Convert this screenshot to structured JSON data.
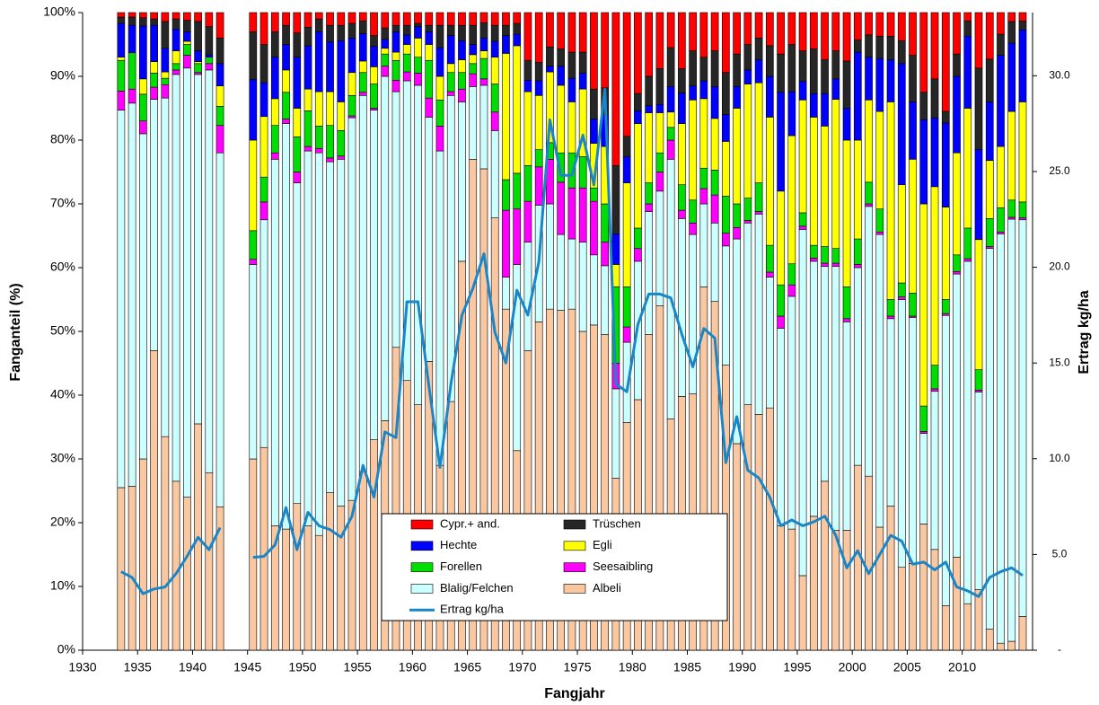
{
  "chart_data": {
    "type": "stacked-bar",
    "x_label": "Fangjahr",
    "y_label": "Fanganteil  (%)",
    "y2_label": "Ertrag kg/ha",
    "xlim": [
      1930,
      2016.4
    ],
    "xticks": [
      1930,
      1935,
      1940,
      1945,
      1950,
      1955,
      1960,
      1965,
      1970,
      1975,
      1980,
      1985,
      1990,
      1995,
      2000,
      2005,
      2010
    ],
    "ylim": [
      0,
      100
    ],
    "yticks": [
      {
        "value": 0,
        "label": "0%"
      },
      {
        "value": 10,
        "label": "10%"
      },
      {
        "value": 20,
        "label": "20%"
      },
      {
        "value": 30,
        "label": "30%"
      },
      {
        "value": 40,
        "label": "40%"
      },
      {
        "value": 50,
        "label": "50%"
      },
      {
        "value": 60,
        "label": "60%"
      },
      {
        "value": 70,
        "label": "70%"
      },
      {
        "value": 80,
        "label": "80%"
      },
      {
        "value": 90,
        "label": "90%"
      },
      {
        "value": 100,
        "label": "100%"
      }
    ],
    "y2lim": [
      0,
      33.3
    ],
    "y2ticks": [
      {
        "value": 0,
        "label": "-"
      },
      {
        "value": 5,
        "label": "5.0"
      },
      {
        "value": 10,
        "label": "10.0"
      },
      {
        "value": 15,
        "label": "15.0"
      },
      {
        "value": 20,
        "label": "20.0"
      },
      {
        "value": 25,
        "label": "25.0"
      },
      {
        "value": 30,
        "label": "30.0"
      }
    ],
    "grid": false,
    "legend": "bottom-center",
    "x": [
      1933,
      1934,
      1935,
      1936,
      1937,
      1938,
      1939,
      1940,
      1941,
      1942,
      1943,
      1944,
      1945,
      1946,
      1947,
      1948,
      1949,
      1950,
      1951,
      1952,
      1953,
      1954,
      1955,
      1956,
      1957,
      1958,
      1959,
      1960,
      1961,
      1962,
      1963,
      1964,
      1965,
      1966,
      1967,
      1968,
      1969,
      1970,
      1971,
      1972,
      1973,
      1974,
      1975,
      1976,
      1977,
      1978,
      1979,
      1980,
      1981,
      1982,
      1983,
      1984,
      1985,
      1986,
      1987,
      1988,
      1989,
      1990,
      1991,
      1992,
      1993,
      1994,
      1995,
      1996,
      1997,
      1998,
      1999,
      2000,
      2001,
      2002,
      2003,
      2004,
      2005,
      2006,
      2007,
      2008,
      2009,
      2010,
      2011,
      2012,
      2013,
      2014,
      2015
    ],
    "series": [
      {
        "name": "Cypr.+ and.",
        "color": "#ff0000",
        "values": [
          0.7,
          0.7,
          0.8,
          1,
          1.4,
          1,
          1.2,
          1.4,
          2.2,
          4,
          null,
          null,
          3,
          5,
          3,
          2,
          3.2,
          2.3,
          1,
          2,
          2,
          1.7,
          1.3,
          3.6,
          2.4,
          2,
          2,
          1.7,
          2,
          2,
          2,
          2,
          2,
          1.6,
          2,
          2,
          1.7,
          7.5,
          7.8,
          5.4,
          5.7,
          6.2,
          6.2,
          12,
          11.8,
          24,
          19.4,
          12.7,
          10,
          8.8,
          5.5,
          8.8,
          6,
          7,
          6,
          9.4,
          6.5,
          5,
          4,
          5.2,
          6.5,
          5,
          6,
          5.7,
          7.4,
          6,
          7.6,
          4.3,
          3.5,
          3.7,
          3.7,
          4.4,
          6.7,
          12.5,
          10.4,
          15.5,
          6.5,
          1.3,
          8.7,
          7.3,
          3.4,
          1.4,
          1.3
        ]
      },
      {
        "name": "Trüschen",
        "color": "#262626",
        "values": [
          1,
          1.3,
          1.3,
          1,
          4.2,
          1.6,
          1.8,
          4.6,
          4.4,
          4,
          null,
          null,
          7.5,
          6,
          4,
          3,
          3.8,
          2.9,
          2,
          2.6,
          2.4,
          2.3,
          2,
          1.7,
          1.8,
          1,
          1.5,
          0.5,
          1,
          3.5,
          1.6,
          2.4,
          3,
          2.4,
          2.5,
          1.6,
          1.7,
          3.1,
          2.9,
          3,
          2.7,
          4.1,
          3.3,
          4.7,
          4.2,
          10.7,
          3.2,
          2.7,
          4.6,
          5.6,
          6.1,
          3.8,
          5.5,
          3.7,
          5.6,
          6.6,
          5.1,
          4,
          3.4,
          4.8,
          6,
          7.4,
          4.8,
          7,
          5.3,
          4.4,
          7.4,
          1.9,
          3.5,
          3.5,
          3.7,
          3.6,
          7.3,
          4.3,
          6.1,
          1.8,
          3.5,
          2.4,
          12.8,
          6.7,
          3.3,
          3.4,
          1.4
        ]
      },
      {
        "name": "Hechte",
        "color": "#0000ff",
        "values": [
          5.3,
          4.3,
          8.3,
          5.7,
          3.7,
          3.4,
          1.5,
          1.7,
          0.4,
          3.5,
          null,
          null,
          9.5,
          5.3,
          6.5,
          4,
          8,
          6.8,
          9.4,
          7.8,
          9.6,
          5.4,
          4.3,
          3.2,
          1.4,
          3.2,
          1.5,
          1.8,
          2,
          4.5,
          4.4,
          3,
          1.6,
          2,
          2.5,
          2.8,
          1.8,
          1.8,
          2.3,
          0.9,
          3,
          3.7,
          2.5,
          3.8,
          5,
          4.8,
          4.1,
          2,
          1.1,
          1.3,
          4,
          4.8,
          2.2,
          2.8,
          5,
          4.2,
          3.4,
          2.2,
          3.6,
          6.4,
          15.5,
          6.9,
          2.9,
          3.7,
          5.1,
          3.2,
          5,
          13.8,
          6.7,
          8.3,
          6.6,
          19,
          9,
          13.2,
          10.8,
          13.2,
          12,
          11.3,
          14.1,
          9.2,
          14.3,
          10.7,
          11.3
        ]
      },
      {
        "name": "Egli",
        "color": "#ffff00",
        "values": [
          0.5,
          0,
          2.4,
          1.8,
          1,
          2,
          0.5,
          0.3,
          0,
          3.2,
          null,
          null,
          14.2,
          9.5,
          4.2,
          3.5,
          4.5,
          3.4,
          5.4,
          5.3,
          4.5,
          3.6,
          1.8,
          2.7,
          0.9,
          1.3,
          1.5,
          3,
          2.5,
          3.7,
          1.4,
          2,
          1.4,
          1.2,
          4.2,
          19.8,
          20,
          11.6,
          8.5,
          11.1,
          10.6,
          8,
          10.6,
          7,
          9,
          3.5,
          16.3,
          16.4,
          11,
          6.3,
          2.4,
          9.6,
          15.7,
          10.9,
          8.1,
          8.6,
          15,
          17.9,
          15.7,
          20.1,
          14.7,
          20.1,
          17.7,
          20.1,
          18.9,
          23.4,
          23,
          15.5,
          12.9,
          15.3,
          31,
          15.4,
          21,
          31.7,
          28,
          14.5,
          16,
          18.8,
          20.4,
          9.1,
          9.6,
          13.9,
          15.7
        ]
      },
      {
        "name": "Forellen",
        "color": "#00dd00",
        "values": [
          4.8,
          5.7,
          4.2,
          2.2,
          1,
          1,
          1.7,
          1.4,
          1,
          3,
          null,
          null,
          4.5,
          3.9,
          4.3,
          4.2,
          5.5,
          5.6,
          3.5,
          5.1,
          4,
          3.2,
          3.1,
          3.8,
          1.9,
          3.1,
          2.8,
          2.5,
          5.9,
          4.1,
          3,
          2.6,
          1.6,
          3.2,
          4.4,
          4.8,
          5.6,
          5.6,
          2.7,
          2.6,
          4.6,
          5.5,
          4.9,
          2.1,
          6,
          12,
          6.3,
          3.2,
          3.3,
          3,
          2,
          4,
          3.6,
          3.2,
          3.9,
          5.8,
          3.7,
          3.5,
          4.5,
          4.2,
          4.9,
          3.3,
          2.1,
          2,
          2.6,
          2.3,
          5,
          4,
          3.4,
          3.6,
          2.6,
          2.2,
          3.6,
          4,
          3.7,
          2.2,
          2.6,
          4.8,
          3.2,
          4.4,
          3.8,
          2.7,
          2.5
        ]
      },
      {
        "name": "Seesaibling",
        "color": "#ff00ff",
        "values": [
          3,
          2.2,
          2,
          1.9,
          2.1,
          0.7,
          2,
          0.3,
          1,
          4.3,
          null,
          null,
          0.8,
          2.8,
          1,
          0.7,
          1.7,
          0.7,
          0.7,
          0.6,
          0.5,
          0.3,
          0.5,
          0.3,
          1.6,
          1.8,
          1.4,
          1.9,
          3,
          3.9,
          0.6,
          2,
          2,
          1,
          2.9,
          10.5,
          8.7,
          6.4,
          6,
          7,
          8.2,
          8,
          8.5,
          8.4,
          3.7,
          4,
          2.4,
          2,
          1.2,
          3,
          3,
          1.3,
          1.8,
          2.4,
          4.4,
          2,
          1.8,
          0.4,
          0.4,
          0.8,
          1.9,
          1.8,
          0.5,
          0.5,
          0.5,
          0.5,
          0.5,
          0.5,
          0.4,
          0.4,
          0.4,
          0.4,
          0.2,
          0.3,
          0.4,
          0.3,
          0.4,
          0.4,
          0.3,
          0.3,
          0.3,
          0.3,
          0.3
        ]
      },
      {
        "name": "Blalig/Felchen",
        "color": "#ccffff",
        "values": [
          59.2,
          60.1,
          51,
          39.4,
          53.1,
          63.8,
          67.3,
          54.8,
          63.2,
          55.5,
          null,
          null,
          30.5,
          35.7,
          57.5,
          63.6,
          50.3,
          58.8,
          60,
          51.9,
          54.4,
          60,
          59,
          51.7,
          54,
          40.1,
          47,
          50.1,
          38.3,
          49.3,
          48,
          25,
          11.4,
          13.1,
          13.7,
          5,
          29.2,
          17,
          18.3,
          16.5,
          11.9,
          11,
          14,
          11,
          10.8,
          14,
          12.6,
          21.7,
          19.3,
          18,
          40.7,
          27.9,
          25,
          13,
          12.3,
          18.7,
          32.1,
          28.5,
          31.4,
          20.5,
          31,
          36.5,
          54.3,
          40,
          33.7,
          41.4,
          32.7,
          31,
          42.3,
          45.9,
          29.4,
          42,
          38.6,
          14.2,
          24.8,
          45.5,
          44.4,
          53.7,
          31,
          59.7,
          64.2,
          66.2,
          62.2
        ]
      },
      {
        "name": "Albeli",
        "color": "#fac8a0",
        "values": [
          25.5,
          25.7,
          30,
          47,
          33.5,
          26.5,
          24,
          35.5,
          27.8,
          22.5,
          null,
          null,
          30,
          31.8,
          19.5,
          19,
          23,
          19.5,
          18,
          24.7,
          22.6,
          23.5,
          28,
          33,
          36,
          47.5,
          42.3,
          38.5,
          45.3,
          29,
          39,
          61,
          77,
          75.5,
          67.8,
          53.5,
          31.3,
          47,
          51.5,
          53.5,
          53.3,
          53.5,
          50,
          51,
          49.5,
          27,
          35.7,
          39.3,
          49.5,
          54,
          36.3,
          39.8,
          40.2,
          57,
          54.7,
          44.7,
          32.4,
          38.5,
          37,
          38,
          19.5,
          19,
          11.7,
          21,
          26.5,
          18.8,
          18.8,
          29,
          27.3,
          19.3,
          22.6,
          13,
          13.6,
          19.8,
          15.8,
          7,
          14.6,
          7.3,
          9.5,
          3.3,
          1.1,
          1.4,
          5.3
        ]
      },
      {
        "name": "Ertrag kg/ha",
        "color": "#1a86c8",
        "type": "line",
        "axis": "y2",
        "values": [
          4.1,
          3.8,
          2.95,
          3.2,
          3.3,
          4,
          4.9,
          5.9,
          5.25,
          6.4,
          null,
          null,
          4.85,
          4.9,
          5.5,
          7.45,
          5.25,
          7.2,
          6.5,
          6.3,
          5.9,
          7,
          9.65,
          8,
          11.4,
          11.1,
          18.2,
          18.2,
          13.8,
          9.55,
          13.9,
          17.5,
          18.9,
          20.7,
          16.6,
          15,
          18.8,
          17.5,
          20.3,
          27.7,
          24.8,
          24.8,
          26.9,
          24.3,
          29.3,
          13.9,
          13.5,
          17,
          18.6,
          18.6,
          18.4,
          16.5,
          14.8,
          16.8,
          16.3,
          9.8,
          12.2,
          9.4,
          9,
          8,
          6.5,
          6.8,
          6.5,
          6.7,
          7,
          6,
          4.3,
          5.2,
          4,
          5,
          6,
          5.7,
          4.5,
          4.6,
          4.2,
          4.6,
          3.3,
          3.1,
          2.8,
          3.8,
          4.1,
          4.3,
          3.9
        ]
      }
    ]
  }
}
